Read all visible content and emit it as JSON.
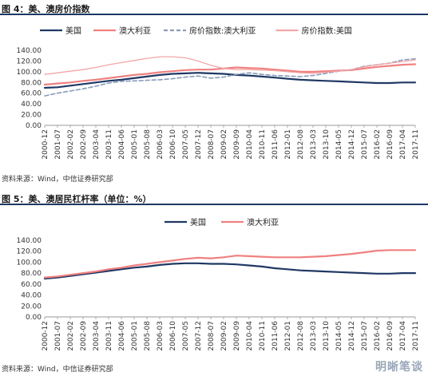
{
  "figures": [
    {
      "title": "图 4：美、澳房价指数",
      "source": "资料来源：Wind，中信证券研究部"
    },
    {
      "title": "图 5：美、澳居民杠杆率（单位：%）",
      "source": "资料来源：Wind，中信证券研究部"
    }
  ],
  "watermark": "明晰笔谈",
  "chart_data": [
    {
      "type": "line",
      "x_ticks": [
        "2000-12",
        "2001-07",
        "2002-02",
        "2002-09",
        "2003-04",
        "2003-11",
        "2004-06",
        "2005-01",
        "2005-08",
        "2006-03",
        "2006-10",
        "2007-05",
        "2007-12",
        "2008-07",
        "2009-02",
        "2009-09",
        "2010-04",
        "2010-11",
        "2011-06",
        "2012-01",
        "2012-08",
        "2013-03",
        "2013-10",
        "2014-05",
        "2014-12",
        "2015-07",
        "2016-02",
        "2016-09",
        "2017-04",
        "2017-11"
      ],
      "ylim": [
        0,
        140
      ],
      "y_ticks": [
        "0.00",
        "20.00",
        "40.00",
        "60.00",
        "80.00",
        "100.00",
        "120.00",
        "140.00"
      ],
      "legend_position": "top",
      "series": [
        {
          "name": "美国",
          "color": "#1f3864",
          "style": "solid",
          "width": 2.2,
          "values": [
            70,
            71,
            74,
            77,
            80,
            83,
            85,
            88,
            91,
            94,
            96,
            97,
            98,
            97,
            96,
            94,
            93,
            91,
            89,
            87,
            85,
            84,
            83,
            82,
            81,
            80,
            79,
            79,
            80,
            80
          ]
        },
        {
          "name": "澳大利亚",
          "color": "#f08080",
          "style": "solid",
          "width": 2.2,
          "values": [
            76,
            78,
            80,
            83,
            85,
            88,
            91,
            94,
            96,
            99,
            101,
            103,
            104,
            104,
            106,
            108,
            107,
            106,
            104,
            102,
            100,
            100,
            101,
            102,
            103,
            106,
            109,
            111,
            113,
            114
          ]
        },
        {
          "name": "房价指数:澳大利亚",
          "color": "#8a9bb8",
          "style": "dashed",
          "width": 1.6,
          "values": [
            55,
            60,
            64,
            68,
            73,
            79,
            82,
            83,
            84,
            85,
            87,
            90,
            92,
            88,
            90,
            95,
            98,
            95,
            93,
            92,
            91,
            93,
            97,
            101,
            104,
            110,
            113,
            116,
            122,
            124
          ]
        },
        {
          "name": "房价指数:美国",
          "color": "#f4a6a6",
          "style": "solid",
          "width": 1.3,
          "values": [
            95,
            98,
            101,
            104,
            108,
            113,
            117,
            121,
            125,
            128,
            128,
            126,
            120,
            112,
            106,
            104,
            104,
            103,
            102,
            100,
            98,
            97,
            99,
            101,
            104,
            109,
            113,
            116,
            119,
            122
          ]
        }
      ]
    },
    {
      "type": "line",
      "x_ticks": [
        "2000-12",
        "2001-07",
        "2002-02",
        "2002-09",
        "2003-04",
        "2003-11",
        "2004-06",
        "2005-01",
        "2005-08",
        "2006-03",
        "2006-10",
        "2007-05",
        "2007-12",
        "2008-07",
        "2009-02",
        "2009-09",
        "2010-04",
        "2010-11",
        "2011-06",
        "2012-01",
        "2012-08",
        "2013-03",
        "2013-10",
        "2014-05",
        "2014-12",
        "2015-07",
        "2016-02",
        "2016-09",
        "2017-04",
        "2017-11"
      ],
      "ylim": [
        0,
        140
      ],
      "y_ticks": [
        "0.00",
        "20.00",
        "40.00",
        "60.00",
        "80.00",
        "100.00",
        "120.00",
        "140.00"
      ],
      "legend_position": "top",
      "series": [
        {
          "name": "美国",
          "color": "#1f3864",
          "style": "solid",
          "width": 2.2,
          "values": [
            70,
            72,
            75,
            78,
            81,
            84,
            87,
            90,
            92,
            95,
            97,
            98,
            98,
            97,
            97,
            96,
            94,
            92,
            89,
            87,
            85,
            84,
            83,
            82,
            81,
            80,
            79,
            79,
            80,
            80
          ]
        },
        {
          "name": "澳大利亚",
          "color": "#f08080",
          "style": "solid",
          "width": 2.2,
          "values": [
            72,
            74,
            77,
            80,
            83,
            87,
            90,
            94,
            97,
            100,
            103,
            106,
            108,
            107,
            109,
            112,
            111,
            110,
            109,
            109,
            109,
            110,
            111,
            113,
            115,
            118,
            121,
            122,
            122,
            122
          ]
        }
      ]
    }
  ]
}
